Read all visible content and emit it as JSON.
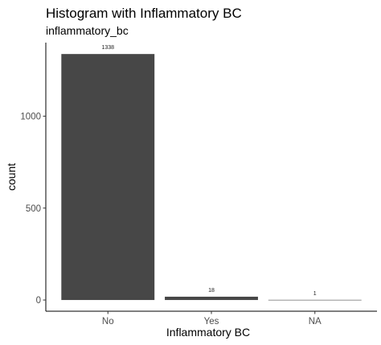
{
  "chart_data": {
    "type": "bar",
    "title": "Histogram with Inflammatory BC",
    "subtitle": "inflammatory_bc",
    "xlabel": "Inflammatory BC",
    "ylabel": "count",
    "categories": [
      "No",
      "Yes",
      "NA"
    ],
    "values": [
      1338,
      18,
      1
    ],
    "data_labels": [
      "1338",
      "18",
      "1"
    ],
    "yticks": [
      0,
      500,
      1000
    ],
    "ytick_labels": [
      "0",
      "500",
      "1000"
    ],
    "ylim": [
      -61,
      1400
    ],
    "grid": false,
    "legend": "none",
    "bar_color": "#474747",
    "colors": {
      "axis": "#000000",
      "tick_text": "#4d4d4d",
      "label_text": "#1a1a1a"
    }
  }
}
